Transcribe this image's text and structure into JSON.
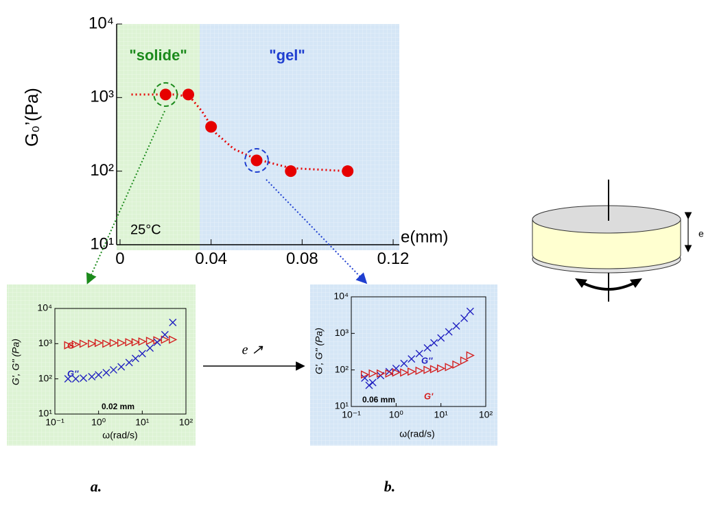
{
  "chart_data": [
    {
      "type": "scatter",
      "xlabel": "e(mm)",
      "ylabel": "G₀’(Pa)",
      "annotation": "25°C",
      "xlim": [
        -0.0015,
        0.1227
      ],
      "xticks": [
        0,
        0.04,
        0.08,
        0.12
      ],
      "ylim": [
        10,
        10000
      ],
      "log_y": true,
      "yticks": [
        {
          "value": 10,
          "label": "10¹"
        },
        {
          "value": 100,
          "label": "10²"
        },
        {
          "value": 1000,
          "label": "10³"
        },
        {
          "value": 10000,
          "label": "10⁴"
        }
      ],
      "regions": [
        {
          "label": "\"solide\"",
          "color": "#1b8a1b",
          "fill": "#ddf3d4"
        },
        {
          "label": "\"gel\"",
          "color": "#1f3fd0",
          "fill": "#d5e6f6"
        }
      ],
      "region_boundary": 0.035,
      "series": [
        {
          "color": "#e60000",
          "x": [
            0.02,
            0.03,
            0.04,
            0.06,
            0.075,
            0.1
          ],
          "values": [
            1100,
            1100,
            400,
            140,
            100,
            100
          ]
        }
      ],
      "fit": {
        "color": "#e60000",
        "x": [
          0.005,
          0.025,
          0.031,
          0.036,
          0.042,
          0.05,
          0.06,
          0.075,
          0.1
        ],
        "values": [
          1100,
          1100,
          1000,
          650,
          330,
          200,
          145,
          110,
          100
        ]
      },
      "highlight": [
        {
          "point": 0,
          "color": "#1b8a1b"
        },
        {
          "point": 3,
          "color": "#1f3fd0"
        }
      ]
    },
    {
      "type": "inset",
      "xlabel": "ω(rad/s)",
      "ylabel": "G', G'' (Pa)",
      "annotation": "0.02 mm",
      "fill": "#ddf3d4",
      "xlim": [
        0.1,
        100
      ],
      "log_x": true,
      "xticks": [
        {
          "value": 0.1,
          "label": "10⁻¹"
        },
        {
          "value": 1,
          "label": "10⁰"
        },
        {
          "value": 10,
          "label": "10¹"
        },
        {
          "value": 100,
          "label": "10²"
        }
      ],
      "ylim": [
        10,
        10000
      ],
      "log_y": true,
      "yticks": [
        {
          "value": 10,
          "label": "10¹"
        },
        {
          "value": 100,
          "label": "10²"
        },
        {
          "value": 1000,
          "label": "10³"
        },
        {
          "value": 10000,
          "label": "10⁴"
        }
      ],
      "series": [
        {
          "name": "G'",
          "color": "#d42020",
          "marker": "triangle",
          "x": [
            0.2,
            0.3,
            0.45,
            0.7,
            1,
            1.5,
            2.2,
            3.3,
            5,
            7,
            10,
            15,
            22,
            33,
            50
          ],
          "values": [
            900,
            950,
            1000,
            1000,
            1050,
            1000,
            1050,
            1050,
            1100,
            1100,
            1150,
            1200,
            1250,
            1300,
            1300
          ]
        },
        {
          "name": "G''",
          "color": "#2020c0",
          "marker": "cross",
          "x": [
            0.2,
            0.3,
            0.45,
            0.7,
            1,
            1.5,
            2.2,
            3.3,
            5,
            7,
            10,
            15,
            22,
            33,
            50
          ],
          "values": [
            100,
            100,
            105,
            115,
            130,
            150,
            180,
            220,
            290,
            380,
            520,
            750,
            1100,
            1800,
            4000
          ]
        }
      ]
    },
    {
      "type": "inset",
      "xlabel": "ω(rad/s)",
      "ylabel": "G', G'' (Pa)",
      "annotation": "0.06 mm",
      "fill": "#d5e6f6",
      "xlim": [
        0.1,
        100
      ],
      "log_x": true,
      "xticks": [
        {
          "value": 0.1,
          "label": "10⁻¹"
        },
        {
          "value": 1,
          "label": "10⁰"
        },
        {
          "value": 10,
          "label": "10¹"
        },
        {
          "value": 100,
          "label": "10²"
        }
      ],
      "ylim": [
        10,
        10000
      ],
      "log_y": true,
      "yticks": [
        {
          "value": 10,
          "label": "10¹"
        },
        {
          "value": 100,
          "label": "10²"
        },
        {
          "value": 1000,
          "label": "10³"
        },
        {
          "value": 10000,
          "label": "10⁴"
        }
      ],
      "series": [
        {
          "name": "G''",
          "color": "#2020c0",
          "marker": "cross",
          "x": [
            0.2,
            0.25,
            0.3,
            0.45,
            0.7,
            1,
            1.5,
            2.2,
            3.3,
            5,
            7,
            10,
            15,
            22,
            33,
            45
          ],
          "values": [
            60,
            38,
            45,
            70,
            90,
            110,
            150,
            200,
            280,
            400,
            550,
            750,
            1100,
            1600,
            2600,
            4000
          ]
        },
        {
          "name": "G'",
          "color": "#d42020",
          "marker": "triangle",
          "x": [
            0.2,
            0.3,
            0.45,
            0.7,
            1,
            1.5,
            2.2,
            3.3,
            5,
            7,
            10,
            15,
            22,
            33,
            45
          ],
          "values": [
            75,
            80,
            80,
            80,
            85,
            85,
            90,
            95,
            100,
            105,
            110,
            120,
            140,
            180,
            250
          ]
        }
      ]
    }
  ],
  "arrow_label": "e ↗",
  "panel_labels": [
    "a.",
    "b."
  ],
  "diagram_label": "e"
}
